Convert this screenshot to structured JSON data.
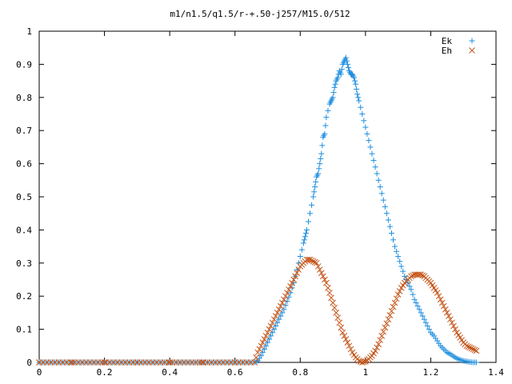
{
  "chart_data": {
    "type": "scatter",
    "title": "m1/n1.5/q1.5/r-+.50-j257/M15.0/512",
    "xlabel": "",
    "ylabel": "",
    "xlim": [
      0,
      1.4
    ],
    "ylim": [
      0,
      1
    ],
    "grid": false,
    "legend_position": "top-right",
    "x_ticks": [
      0,
      0.2,
      0.4,
      0.6,
      0.8,
      1,
      1.2,
      1.4
    ],
    "x_tick_labels": [
      "0",
      "0.2",
      "0.4",
      "0.6",
      "0.8",
      "1",
      "1.2",
      "1.4"
    ],
    "y_ticks": [
      0,
      0.1,
      0.2,
      0.3,
      0.4,
      0.5,
      0.6,
      0.7,
      0.8,
      0.9,
      1
    ],
    "y_tick_labels": [
      "0",
      "0.1",
      "0.2",
      "0.3",
      "0.4",
      "0.5",
      "0.6",
      "0.7",
      "0.8",
      "0.9",
      "1"
    ],
    "series": [
      {
        "name": "Ek",
        "marker": "plus",
        "color": "#1f8fe0",
        "points": [
          [
            0.0,
            0
          ],
          [
            0.1,
            0
          ],
          [
            0.2,
            0
          ],
          [
            0.3,
            0
          ],
          [
            0.4,
            0
          ],
          [
            0.5,
            0
          ],
          [
            0.6,
            0
          ],
          [
            0.66,
            0
          ],
          [
            0.67,
            0.005
          ],
          [
            0.68,
            0.02
          ],
          [
            0.69,
            0.04
          ],
          [
            0.7,
            0.06
          ],
          [
            0.71,
            0.08
          ],
          [
            0.72,
            0.1
          ],
          [
            0.73,
            0.12
          ],
          [
            0.74,
            0.14
          ],
          [
            0.75,
            0.16
          ],
          [
            0.76,
            0.185
          ],
          [
            0.77,
            0.21
          ],
          [
            0.78,
            0.24
          ],
          [
            0.79,
            0.28
          ],
          [
            0.8,
            0.32
          ],
          [
            0.81,
            0.36
          ],
          [
            0.815,
            0.38
          ],
          [
            0.82,
            0.4
          ],
          [
            0.83,
            0.45
          ],
          [
            0.84,
            0.5
          ],
          [
            0.845,
            0.53
          ],
          [
            0.85,
            0.56
          ],
          [
            0.855,
            0.57
          ],
          [
            0.86,
            0.6
          ],
          [
            0.865,
            0.63
          ],
          [
            0.87,
            0.68
          ],
          [
            0.875,
            0.69
          ],
          [
            0.88,
            0.74
          ],
          [
            0.89,
            0.78
          ],
          [
            0.895,
            0.79
          ],
          [
            0.9,
            0.8
          ],
          [
            0.905,
            0.83
          ],
          [
            0.91,
            0.85
          ],
          [
            0.915,
            0.86
          ],
          [
            0.92,
            0.88
          ],
          [
            0.925,
            0.87
          ],
          [
            0.93,
            0.9
          ],
          [
            0.935,
            0.91
          ],
          [
            0.94,
            0.92
          ],
          [
            0.945,
            0.9
          ],
          [
            0.95,
            0.88
          ],
          [
            0.955,
            0.87
          ],
          [
            0.96,
            0.87
          ],
          [
            0.965,
            0.86
          ],
          [
            0.97,
            0.84
          ],
          [
            0.975,
            0.81
          ],
          [
            0.98,
            0.79
          ],
          [
            0.99,
            0.75
          ],
          [
            1.0,
            0.71
          ],
          [
            1.01,
            0.67
          ],
          [
            1.02,
            0.63
          ],
          [
            1.03,
            0.59
          ],
          [
            1.04,
            0.55
          ],
          [
            1.05,
            0.51
          ],
          [
            1.06,
            0.47
          ],
          [
            1.07,
            0.43
          ],
          [
            1.08,
            0.39
          ],
          [
            1.09,
            0.35
          ],
          [
            1.1,
            0.32
          ],
          [
            1.11,
            0.29
          ],
          [
            1.12,
            0.26
          ],
          [
            1.13,
            0.24
          ],
          [
            1.14,
            0.22
          ],
          [
            1.15,
            0.19
          ],
          [
            1.16,
            0.17
          ],
          [
            1.17,
            0.15
          ],
          [
            1.18,
            0.13
          ],
          [
            1.19,
            0.11
          ],
          [
            1.2,
            0.09
          ],
          [
            1.21,
            0.08
          ],
          [
            1.22,
            0.065
          ],
          [
            1.23,
            0.05
          ],
          [
            1.24,
            0.04
          ],
          [
            1.25,
            0.03
          ],
          [
            1.26,
            0.025
          ],
          [
            1.27,
            0.018
          ],
          [
            1.28,
            0.012
          ],
          [
            1.29,
            0.008
          ],
          [
            1.3,
            0.005
          ],
          [
            1.31,
            0.003
          ],
          [
            1.32,
            0.001
          ],
          [
            1.33,
            0.0
          ],
          [
            1.34,
            0.0
          ]
        ]
      },
      {
        "name": "Eh",
        "marker": "cross",
        "color": "#c4561a",
        "points": [
          [
            0.0,
            0
          ],
          [
            0.1,
            0
          ],
          [
            0.2,
            0
          ],
          [
            0.3,
            0
          ],
          [
            0.4,
            0
          ],
          [
            0.5,
            0
          ],
          [
            0.6,
            0
          ],
          [
            0.66,
            0
          ],
          [
            0.67,
            0.03
          ],
          [
            0.68,
            0.05
          ],
          [
            0.69,
            0.07
          ],
          [
            0.7,
            0.09
          ],
          [
            0.71,
            0.11
          ],
          [
            0.72,
            0.13
          ],
          [
            0.73,
            0.15
          ],
          [
            0.74,
            0.17
          ],
          [
            0.75,
            0.19
          ],
          [
            0.76,
            0.21
          ],
          [
            0.77,
            0.23
          ],
          [
            0.78,
            0.25
          ],
          [
            0.79,
            0.27
          ],
          [
            0.8,
            0.29
          ],
          [
            0.81,
            0.3
          ],
          [
            0.82,
            0.31
          ],
          [
            0.83,
            0.31
          ],
          [
            0.84,
            0.305
          ],
          [
            0.85,
            0.3
          ],
          [
            0.86,
            0.28
          ],
          [
            0.87,
            0.26
          ],
          [
            0.88,
            0.24
          ],
          [
            0.89,
            0.21
          ],
          [
            0.9,
            0.18
          ],
          [
            0.91,
            0.15
          ],
          [
            0.92,
            0.12
          ],
          [
            0.93,
            0.09
          ],
          [
            0.94,
            0.07
          ],
          [
            0.95,
            0.05
          ],
          [
            0.96,
            0.03
          ],
          [
            0.97,
            0.015
          ],
          [
            0.98,
            0.005
          ],
          [
            0.99,
            0.0
          ],
          [
            1.0,
            0.003
          ],
          [
            1.01,
            0.01
          ],
          [
            1.02,
            0.02
          ],
          [
            1.03,
            0.035
          ],
          [
            1.04,
            0.055
          ],
          [
            1.05,
            0.08
          ],
          [
            1.06,
            0.105
          ],
          [
            1.07,
            0.13
          ],
          [
            1.08,
            0.155
          ],
          [
            1.09,
            0.18
          ],
          [
            1.1,
            0.205
          ],
          [
            1.11,
            0.225
          ],
          [
            1.12,
            0.24
          ],
          [
            1.13,
            0.25
          ],
          [
            1.14,
            0.26
          ],
          [
            1.15,
            0.265
          ],
          [
            1.16,
            0.265
          ],
          [
            1.17,
            0.265
          ],
          [
            1.18,
            0.26
          ],
          [
            1.19,
            0.25
          ],
          [
            1.2,
            0.24
          ],
          [
            1.21,
            0.225
          ],
          [
            1.22,
            0.21
          ],
          [
            1.23,
            0.19
          ],
          [
            1.24,
            0.17
          ],
          [
            1.25,
            0.15
          ],
          [
            1.26,
            0.13
          ],
          [
            1.27,
            0.11
          ],
          [
            1.28,
            0.09
          ],
          [
            1.29,
            0.075
          ],
          [
            1.3,
            0.06
          ],
          [
            1.31,
            0.05
          ],
          [
            1.32,
            0.045
          ],
          [
            1.33,
            0.04
          ],
          [
            1.34,
            0.035
          ]
        ]
      }
    ]
  }
}
